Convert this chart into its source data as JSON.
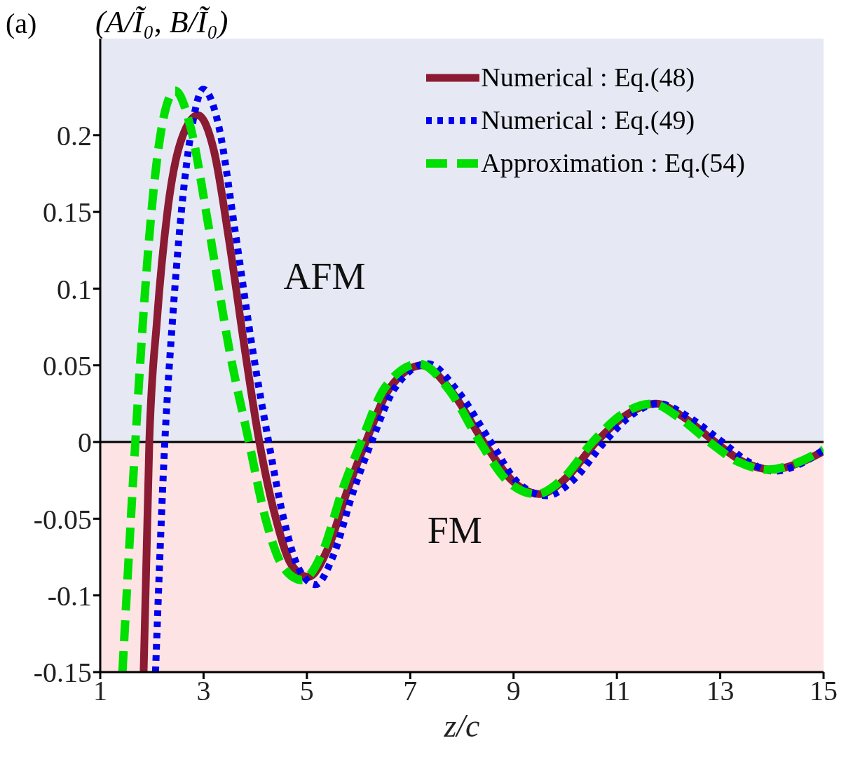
{
  "chart_data": {
    "type": "line",
    "ylabel": "(A/Ĩ₀, B/Ĩ₀)",
    "xlabel": "z/c",
    "annotations": [
      "(a)"
    ],
    "xlim": [
      1,
      15
    ],
    "xticks": [
      1,
      3,
      5,
      7,
      9,
      11,
      13,
      15
    ],
    "ylim": [
      -0.15,
      0.263
    ],
    "yticks": [
      -0.15,
      -0.1,
      -0.05,
      0,
      0.05,
      0.1,
      0.15,
      0.2
    ],
    "legend": "top right",
    "marker": "none",
    "bands": [
      {
        "axis": "y",
        "from": 0,
        "to": 0.263,
        "label": "AFM",
        "color": "#e6e9f3"
      },
      {
        "axis": "y",
        "from": -0.15,
        "to": 0,
        "label": "FM",
        "color": "#fde3e4"
      }
    ],
    "ref_lines": [
      {
        "axis": "y",
        "value": 0,
        "label": null,
        "color": "#000000"
      }
    ],
    "series": [
      {
        "name": "Numerical : Eq.(48)",
        "color": "#8b1a33",
        "line_style": "solid",
        "x": [
          1.84,
          1.95,
          2.1,
          2.3,
          2.55,
          2.89,
          3.2,
          3.5,
          3.8,
          4.08,
          4.4,
          4.7,
          5.03,
          5.4,
          5.8,
          6.14,
          6.6,
          7.23,
          7.8,
          8.42,
          9.0,
          9.51,
          10.0,
          10.6,
          11.2,
          11.75,
          12.3,
          12.9,
          13.45,
          14.0,
          14.5,
          15
        ],
        "values": [
          -0.15,
          0,
          0.08,
          0.15,
          0.195,
          0.213,
          0.19,
          0.13,
          0.06,
          0,
          -0.05,
          -0.08,
          -0.088,
          -0.07,
          -0.03,
          0,
          0.035,
          0.05,
          0.033,
          0,
          -0.026,
          -0.034,
          -0.024,
          0,
          0.018,
          0.025,
          0.016,
          0,
          -0.013,
          -0.018,
          -0.014,
          -0.006
        ]
      },
      {
        "name": "Numerical : Eq.(49)",
        "color": "#0000ee",
        "line_style": "dotted",
        "x": [
          2.07,
          2.25,
          2.4,
          2.6,
          2.8,
          2.99,
          3.3,
          3.6,
          3.95,
          4.26,
          4.55,
          4.85,
          5.17,
          5.5,
          5.9,
          6.25,
          6.7,
          7.34,
          7.9,
          8.56,
          9.1,
          9.64,
          10.15,
          10.76,
          11.3,
          11.81,
          12.4,
          13.04,
          13.55,
          14.05,
          14.5,
          15
        ],
        "values": [
          -0.15,
          0,
          0.08,
          0.16,
          0.21,
          0.23,
          0.205,
          0.14,
          0.06,
          0,
          -0.05,
          -0.083,
          -0.093,
          -0.075,
          -0.032,
          0,
          0.035,
          0.051,
          0.034,
          0,
          -0.027,
          -0.035,
          -0.025,
          0,
          0.018,
          0.025,
          0.016,
          0,
          -0.013,
          -0.019,
          -0.015,
          -0.005
        ]
      },
      {
        "name": "Approximation : Eq.(54)",
        "color": "#00e000",
        "line_style": "dashed",
        "x": [
          1.43,
          1.68,
          1.85,
          2.05,
          2.25,
          2.45,
          2.75,
          3.1,
          3.5,
          3.88,
          4.2,
          4.55,
          4.9,
          5.3,
          5.7,
          6.05,
          6.5,
          7.17,
          7.75,
          8.35,
          8.9,
          9.44,
          9.95,
          10.53,
          11.1,
          11.68,
          12.2,
          12.79,
          13.35,
          13.92,
          14.45,
          15
        ],
        "values": [
          -0.15,
          0,
          0.09,
          0.17,
          0.215,
          0.229,
          0.205,
          0.14,
          0.06,
          0,
          -0.05,
          -0.082,
          -0.09,
          -0.072,
          -0.03,
          0,
          0.035,
          0.051,
          0.034,
          0,
          -0.026,
          -0.034,
          -0.024,
          0,
          0.018,
          0.025,
          0.016,
          0,
          -0.013,
          -0.018,
          -0.014,
          -0.005
        ]
      }
    ]
  }
}
